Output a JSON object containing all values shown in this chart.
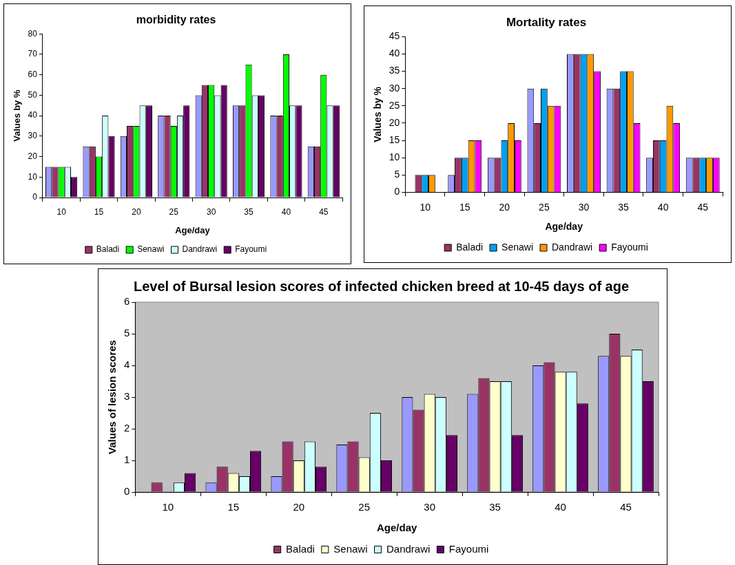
{
  "chart_data": [
    {
      "type": "bar",
      "title": "morbidity rates",
      "xlabel": "Age/day",
      "ylabel": "Values by %",
      "categories": [
        "10",
        "15",
        "20",
        "25",
        "30",
        "35",
        "40",
        "45"
      ],
      "ylim": [
        0,
        80
      ],
      "yticks": [
        0,
        10,
        20,
        30,
        40,
        50,
        60,
        70,
        80
      ],
      "grid": false,
      "legend": "bottom",
      "series": [
        {
          "color": "#9999ff",
          "values": [
            15,
            25,
            30,
            40,
            50,
            45,
            40,
            25
          ]
        },
        {
          "name": "Baladi",
          "color": "#993366",
          "values": [
            15,
            25,
            35,
            40,
            55,
            45,
            40,
            25
          ]
        },
        {
          "name": "Senawi",
          "color": "#00ff00",
          "values": [
            15,
            20,
            35,
            35,
            55,
            65,
            70,
            60
          ]
        },
        {
          "name": "Dandrawi",
          "color": "#ccffff",
          "values": [
            15,
            40,
            45,
            40,
            50,
            50,
            45,
            45
          ]
        },
        {
          "name": "Fayoumi",
          "color": "#660066",
          "values": [
            10,
            30,
            45,
            45,
            55,
            50,
            45,
            45
          ]
        }
      ]
    },
    {
      "type": "bar",
      "title": "Mortality rates",
      "xlabel": "Age/day",
      "ylabel": "Values by %",
      "categories": [
        "10",
        "15",
        "20",
        "25",
        "30",
        "35",
        "40",
        "45"
      ],
      "ylim": [
        0,
        45
      ],
      "yticks": [
        0,
        5,
        10,
        15,
        20,
        25,
        30,
        35,
        40,
        45
      ],
      "grid": false,
      "legend": "bottom",
      "series": [
        {
          "color": "#9999ff",
          "values": [
            0,
            5,
            10,
            30,
            40,
            30,
            10,
            10
          ]
        },
        {
          "name": "Baladi",
          "color": "#993366",
          "values": [
            5,
            10,
            10,
            20,
            40,
            30,
            15,
            10
          ]
        },
        {
          "name": "Senawi",
          "color": "#00a0f0",
          "values": [
            5,
            10,
            15,
            30,
            40,
            35,
            15,
            10
          ]
        },
        {
          "name": "Dandrawi",
          "color": "#ff9900",
          "values": [
            5,
            15,
            20,
            25,
            40,
            35,
            25,
            10
          ]
        },
        {
          "name": "Fayoumi",
          "color": "#ff00ff",
          "values": [
            0,
            15,
            15,
            25,
            35,
            20,
            20,
            10
          ]
        }
      ]
    },
    {
      "type": "bar",
      "title": "Level of Bursal lesion scores of infected chicken breed at 10-45 days of age",
      "xlabel": "Age/day",
      "ylabel": "Values of lesion scores",
      "categories": [
        "10",
        "15",
        "20",
        "25",
        "30",
        "35",
        "40",
        "45"
      ],
      "ylim": [
        0,
        6
      ],
      "yticks": [
        0,
        1,
        2,
        3,
        4,
        5,
        6
      ],
      "grid": false,
      "legend": "bottom",
      "series": [
        {
          "color": "#9999ff",
          "values": [
            0,
            0.3,
            0.5,
            1.5,
            3.0,
            3.1,
            4.0,
            4.3
          ]
        },
        {
          "name": "Baladi",
          "color": "#993366",
          "values": [
            0.3,
            0.8,
            1.6,
            1.6,
            2.6,
            3.6,
            4.1,
            5.0
          ]
        },
        {
          "name": "Senawi",
          "color": "#ffffcc",
          "values": [
            0,
            0.6,
            1.0,
            1.1,
            3.1,
            3.5,
            3.8,
            4.3
          ]
        },
        {
          "name": "Dandrawi",
          "color": "#ccffff",
          "values": [
            0.3,
            0.5,
            1.6,
            2.5,
            3.0,
            3.5,
            3.8,
            4.5
          ]
        },
        {
          "name": "Fayoumi",
          "color": "#660066",
          "values": [
            0.6,
            1.3,
            0.8,
            1.0,
            1.8,
            1.8,
            2.8,
            3.5
          ]
        }
      ]
    }
  ]
}
